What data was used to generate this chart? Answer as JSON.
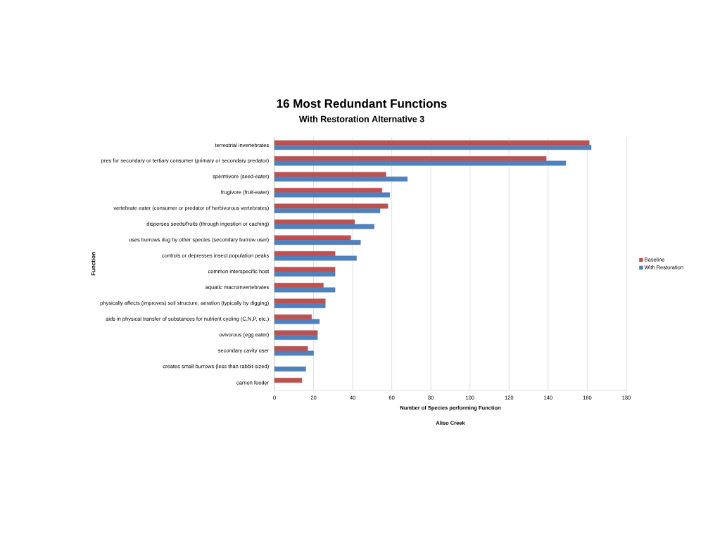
{
  "chart_data": {
    "type": "bar",
    "orientation": "horizontal",
    "title": "16 Most Redundant Functions",
    "subtitle": "With Restoration Alternative 3",
    "xlabel": "Number of Species performing Function",
    "ylabel": "Function",
    "annotations": [
      "Aliso Creek"
    ],
    "categories": [
      "terrestrial invertebrates",
      "prey for secondary or tertiary consumer (primary or secondary predator)",
      "spermivore (seed-eater)",
      "frugivore (fruit-eater)",
      "vertebrate eater (consumer or predator of herbivorous vertebrates)",
      "disperses seeds/fruits (through ingestion or caching)",
      "uses burrows dug by other species (secondary burrow user)",
      "controls or depresses insect population peaks",
      "common interspecific host",
      "aquatic macroinvertebrates",
      "physically affects (improves) soil structure, aeration (typically by digging)",
      "aids in physical transfer of substances for nutrient cycling (C,N,P, etc.)",
      "ovivorous (egg eater)",
      "secondary cavity user",
      "creates small burrows (less than rabbit-sized)",
      "carrion feeder"
    ],
    "series": [
      {
        "name": "Baseline",
        "color": "#c0504d",
        "values": [
          161,
          139,
          57,
          55,
          58,
          41,
          39,
          31,
          31,
          25,
          26,
          19,
          22,
          17,
          null,
          14
        ]
      },
      {
        "name": "With Restoration",
        "color": "#4f81bd",
        "values": [
          162,
          149,
          68,
          59,
          54,
          51,
          44,
          42,
          31,
          31,
          26,
          23,
          22,
          20,
          16,
          null
        ]
      }
    ],
    "xlim": [
      0,
      180
    ],
    "xticks": [
      0,
      20,
      40,
      60,
      80,
      100,
      120,
      140,
      160,
      180
    ],
    "grid": "x",
    "legend": "right"
  }
}
